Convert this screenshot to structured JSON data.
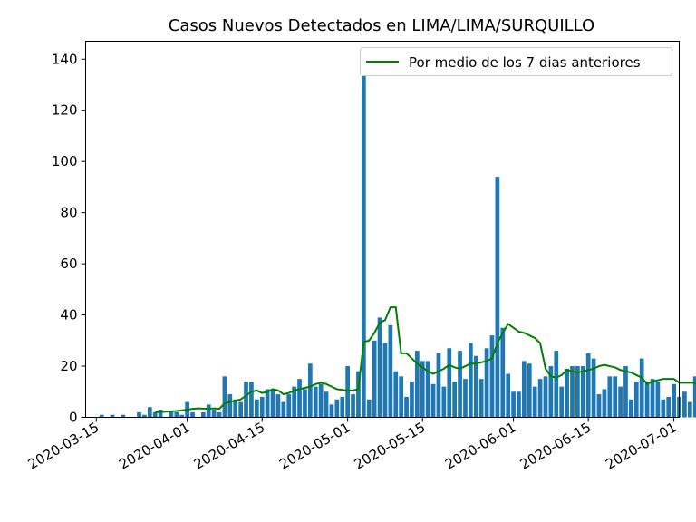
{
  "chart_data": {
    "type": "bar",
    "title": "Casos Nuevos Detectados en LIMA/LIMA/SURQUILLO",
    "xlabel": "",
    "ylabel": "",
    "x_start": "2020-03-16",
    "xlim": [
      "2020-03-13",
      "2020-07-02"
    ],
    "ylim": [
      0,
      147
    ],
    "y_ticks": [
      0,
      20,
      40,
      60,
      80,
      100,
      120,
      140
    ],
    "x_ticks": [
      "2020-03-15",
      "2020-04-01",
      "2020-04-15",
      "2020-05-01",
      "2020-05-15",
      "2020-06-01",
      "2020-06-15",
      "2020-07-01"
    ],
    "legend_position": "top-right",
    "grid": false,
    "colors": {
      "bars": "#1f77b4",
      "line": "#008000"
    },
    "series": [
      {
        "type": "bar",
        "values": [
          1,
          0,
          1,
          0,
          1,
          0,
          0,
          2,
          1,
          4,
          2,
          3,
          0,
          2,
          2,
          1,
          6,
          2,
          0,
          2,
          5,
          3,
          2,
          16,
          9,
          7,
          6,
          14,
          14,
          7,
          8,
          11,
          11,
          9,
          6,
          9,
          12,
          15,
          11,
          21,
          12,
          13,
          10,
          5,
          7,
          8,
          20,
          9,
          18,
          140,
          7,
          30,
          39,
          29,
          36,
          18,
          16,
          8,
          14,
          26,
          22,
          22,
          13,
          25,
          12,
          27,
          14,
          26,
          15,
          29,
          24,
          15,
          27,
          32,
          94,
          35,
          17,
          10,
          10,
          22,
          21,
          12,
          15,
          16,
          20,
          26,
          12,
          19,
          20,
          20,
          20,
          25,
          23,
          9,
          11,
          16,
          16,
          12,
          20,
          7,
          14,
          23,
          14,
          15,
          14,
          7,
          8,
          13,
          8,
          10,
          6,
          16
        ]
      },
      {
        "type": "line",
        "name": "Por medio de los 7 dias anteriores",
        "start_index": 10,
        "values": [
          2,
          2.1,
          2.2,
          2.3,
          2.5,
          2.7,
          3,
          3.3,
          3.5,
          3.4,
          3.3,
          3.5,
          3.3,
          5.5,
          6,
          6.5,
          7,
          8.5,
          10,
          10.5,
          9.5,
          10,
          11,
          10.5,
          9,
          9.5,
          10.5,
          11,
          11.5,
          12,
          13,
          13.5,
          13,
          12,
          11,
          10.7,
          10.5,
          10.5,
          11,
          29.5,
          30,
          33,
          37,
          38,
          43,
          43,
          25,
          25,
          23,
          21,
          19.5,
          18,
          17,
          18,
          19,
          20.5,
          19.5,
          19,
          20,
          21,
          21,
          21.5,
          22,
          23,
          29,
          33,
          36.5,
          35,
          33.5,
          33,
          32,
          31,
          29,
          19,
          16,
          15.5,
          16.5,
          18.5,
          18,
          17.5,
          18,
          18.5,
          19,
          20,
          20.5,
          20,
          19.5,
          18.5,
          18,
          17.5,
          16.5,
          15.5,
          13,
          14,
          14.5,
          15,
          15,
          15,
          13.5,
          13.5,
          13.5,
          13.5,
          11.5,
          11,
          10,
          10
        ]
      }
    ]
  }
}
